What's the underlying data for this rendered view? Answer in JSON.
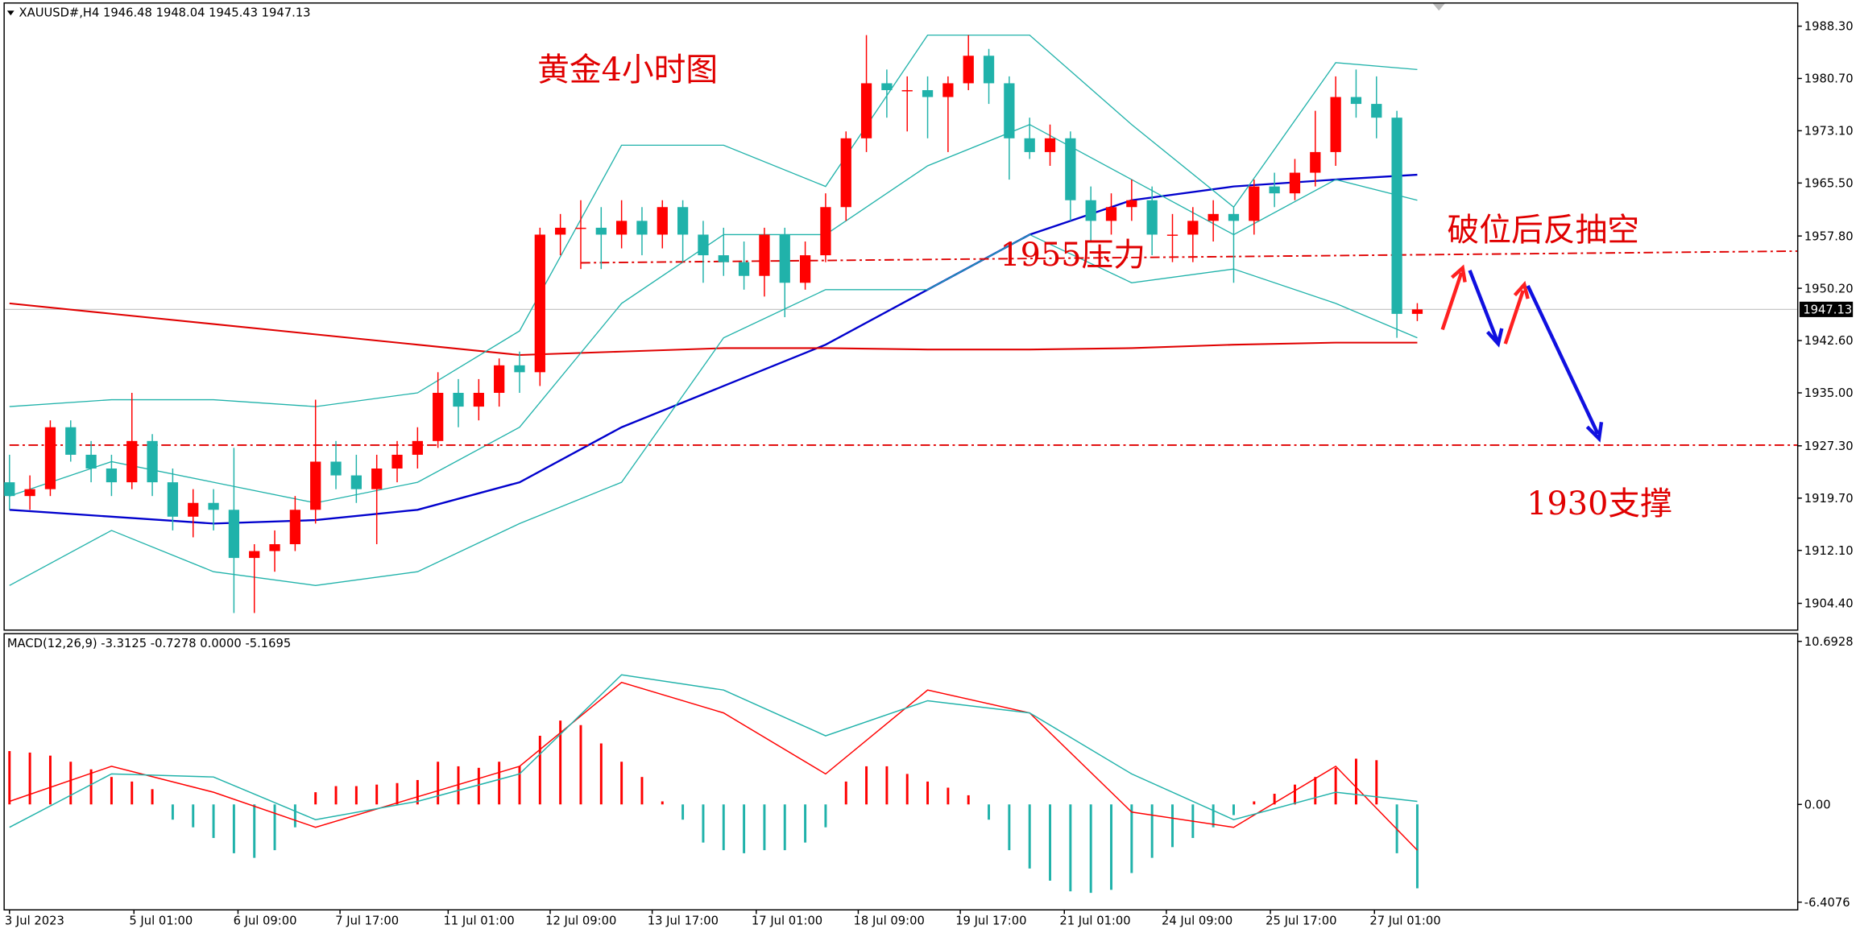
{
  "chart_data": {
    "type": "candlestick",
    "header": "XAUUSD#,H4  1946.48 1948.04 1945.43 1947.13",
    "macd_header": "MACD(12,26,9) -3.3125 -0.7278 0.0000 -5.1695",
    "annotations": [
      "黄金4小时图",
      "1955压力",
      "破位后反抽空",
      "1930支撑"
    ],
    "current_price": {
      "value": 1947.13,
      "label": "1947.13"
    },
    "up_color": "#ff0000",
    "down_color": "#20b2aa",
    "ylim": [
      1900.6,
      1992.1
    ],
    "yticks": [
      {
        "value": 1988.3,
        "label": "1988.30"
      },
      {
        "value": 1980.7,
        "label": "1980.70"
      },
      {
        "value": 1973.1,
        "label": "1973.10"
      },
      {
        "value": 1965.5,
        "label": "1965.50"
      },
      {
        "value": 1957.8,
        "label": "1957.80"
      },
      {
        "value": 1950.2,
        "label": "1950.20"
      },
      {
        "value": 1942.6,
        "label": "1942.60"
      },
      {
        "value": 1935,
        "label": "1935.00"
      },
      {
        "value": 1927.3,
        "label": "1927.30"
      },
      {
        "value": 1919.7,
        "label": "1919.70"
      },
      {
        "value": 1912.1,
        "label": "1912.10"
      },
      {
        "value": 1904.4,
        "label": "1904.40"
      }
    ],
    "xticks": [
      {
        "value": 0,
        "label": "3 Jul 2023"
      },
      {
        "value": 6.1,
        "label": "5 Jul 01:00"
      },
      {
        "value": 11.2,
        "label": "6 Jul 09:00"
      },
      {
        "value": 16.2,
        "label": "7 Jul 17:00"
      },
      {
        "value": 21.5,
        "label": "11 Jul 01:00"
      },
      {
        "value": 26.5,
        "label": "12 Jul 09:00"
      },
      {
        "value": 31.5,
        "label": "13 Jul 17:00"
      },
      {
        "value": 36.6,
        "label": "17 Jul 01:00"
      },
      {
        "value": 41.6,
        "label": "18 Jul 09:00"
      },
      {
        "value": 46.6,
        "label": "19 Jul 17:00"
      },
      {
        "value": 51.7,
        "label": "21 Jul 01:00"
      },
      {
        "value": 56.7,
        "label": "24 Jul 09:00"
      },
      {
        "value": 61.8,
        "label": "25 Jul 17:00"
      },
      {
        "value": 66.9,
        "label": "27 Jul 01:00"
      }
    ],
    "candles": [
      [
        1922,
        1926,
        1918,
        1920
      ],
      [
        1920,
        1923,
        1918,
        1921
      ],
      [
        1921,
        1931,
        1920,
        1930
      ],
      [
        1930,
        1931,
        1925,
        1926
      ],
      [
        1926,
        1928,
        1922,
        1924
      ],
      [
        1924,
        1926,
        1920,
        1922
      ],
      [
        1922,
        1935,
        1921,
        1928
      ],
      [
        1928,
        1929,
        1920,
        1922
      ],
      [
        1922,
        1924,
        1915,
        1917
      ],
      [
        1917,
        1921,
        1914,
        1919
      ],
      [
        1919,
        1921,
        1915,
        1918
      ],
      [
        1918,
        1927,
        1903,
        1911
      ],
      [
        1911,
        1913,
        1903,
        1912
      ],
      [
        1912,
        1915,
        1909,
        1913
      ],
      [
        1913,
        1920,
        1912,
        1918
      ],
      [
        1918,
        1934,
        1916,
        1925
      ],
      [
        1925,
        1928,
        1921,
        1923
      ],
      [
        1923,
        1926,
        1919,
        1921
      ],
      [
        1921,
        1926,
        1913,
        1924
      ],
      [
        1924,
        1928,
        1922,
        1926
      ],
      [
        1926,
        1930,
        1924,
        1928
      ],
      [
        1928,
        1938,
        1927,
        1935
      ],
      [
        1935,
        1937,
        1930,
        1933
      ],
      [
        1933,
        1937,
        1931,
        1935
      ],
      [
        1935,
        1940,
        1933,
        1939
      ],
      [
        1939,
        1941,
        1935,
        1938
      ],
      [
        1938,
        1959,
        1936,
        1958
      ],
      [
        1958,
        1961,
        1955,
        1959
      ],
      [
        1959,
        1963,
        1953,
        1959
      ],
      [
        1959,
        1962,
        1953,
        1958
      ],
      [
        1958,
        1963,
        1956,
        1960
      ],
      [
        1960,
        1962,
        1955,
        1958
      ],
      [
        1958,
        1963,
        1956,
        1962
      ],
      [
        1962,
        1963,
        1954,
        1958
      ],
      [
        1958,
        1960,
        1951,
        1955
      ],
      [
        1955,
        1959,
        1952,
        1954
      ],
      [
        1954,
        1957,
        1950,
        1952
      ],
      [
        1952,
        1959,
        1949,
        1958
      ],
      [
        1958,
        1959,
        1946,
        1951
      ],
      [
        1951,
        1957,
        1950,
        1955
      ],
      [
        1955,
        1964,
        1954,
        1962
      ],
      [
        1962,
        1973,
        1960,
        1972
      ],
      [
        1972,
        1987,
        1970,
        1980
      ],
      [
        1980,
        1982,
        1975,
        1979
      ],
      [
        1979,
        1981,
        1973,
        1979
      ],
      [
        1979,
        1981,
        1972,
        1978
      ],
      [
        1978,
        1981,
        1970,
        1980
      ],
      [
        1980,
        1987,
        1979,
        1984
      ],
      [
        1984,
        1985,
        1977,
        1980
      ],
      [
        1980,
        1981,
        1966,
        1972
      ],
      [
        1972,
        1975,
        1969,
        1970
      ],
      [
        1970,
        1974,
        1968,
        1972
      ],
      [
        1972,
        1973,
        1960,
        1963
      ],
      [
        1963,
        1965,
        1957,
        1960
      ],
      [
        1960,
        1964,
        1958,
        1962
      ],
      [
        1962,
        1966,
        1960,
        1963
      ],
      [
        1963,
        1965,
        1955,
        1958
      ],
      [
        1958,
        1961,
        1954,
        1958
      ],
      [
        1958,
        1962,
        1954,
        1960
      ],
      [
        1960,
        1963,
        1957,
        1961
      ],
      [
        1961,
        1962,
        1951,
        1960
      ],
      [
        1960,
        1966,
        1958,
        1965
      ],
      [
        1965,
        1967,
        1962,
        1964
      ],
      [
        1964,
        1969,
        1963,
        1967
      ],
      [
        1967,
        1976,
        1965,
        1970
      ],
      [
        1970,
        1981,
        1968,
        1978
      ],
      [
        1978,
        1982,
        1975,
        1977
      ],
      [
        1977,
        1981,
        1972,
        1975
      ],
      [
        1975,
        1976,
        1943,
        1946.48
      ],
      [
        1946.48,
        1948.04,
        1945.43,
        1947.13
      ]
    ],
    "lines": [
      {
        "color": "#0000cd",
        "width": 1.6,
        "x": [
          0,
          5,
          10,
          15,
          20,
          25,
          30,
          35,
          40,
          45,
          50,
          55,
          60,
          65,
          69
        ],
        "values": [
          1918,
          1917,
          1916,
          1916.5,
          1918,
          1922,
          1930,
          1936,
          1942,
          1950,
          1958,
          1963,
          1965,
          1966,
          1966.7
        ]
      },
      {
        "color": "#e00000",
        "width": 1.4,
        "x": [
          0,
          5,
          10,
          15,
          20,
          25,
          30,
          35,
          40,
          45,
          50,
          55,
          60,
          65,
          69
        ],
        "values": [
          1948,
          1946.5,
          1945,
          1943.5,
          1942,
          1940.5,
          1941,
          1941.5,
          1941.5,
          1941.3,
          1941.3,
          1941.5,
          1942,
          1942.3,
          1942.3
        ]
      },
      {
        "color": "#20b2aa",
        "width": 0.9,
        "x": [
          0,
          5,
          10,
          15,
          20,
          25,
          30,
          35,
          40,
          45,
          50,
          55,
          60,
          65,
          69
        ],
        "values": [
          1933,
          1934,
          1934,
          1933,
          1935,
          1944,
          1971,
          1971,
          1965,
          1987,
          1987,
          1974,
          1962,
          1983,
          1982
        ]
      },
      {
        "color": "#20b2aa",
        "width": 0.9,
        "x": [
          0,
          5,
          10,
          15,
          20,
          25,
          30,
          35,
          40,
          45,
          50,
          55,
          60,
          65,
          69
        ],
        "values": [
          1920,
          1925,
          1922,
          1919,
          1922,
          1930,
          1948,
          1958,
          1958,
          1968,
          1974,
          1966,
          1958,
          1966,
          1963
        ]
      },
      {
        "color": "#20b2aa",
        "width": 0.9,
        "x": [
          0,
          5,
          10,
          15,
          20,
          25,
          30,
          35,
          40,
          45,
          50,
          55,
          60,
          65,
          69
        ],
        "values": [
          1907,
          1915,
          1909,
          1907,
          1909,
          1916,
          1922,
          1943,
          1950,
          1950,
          1958,
          1951,
          1953,
          1948,
          1943
        ]
      }
    ],
    "levels": [
      {
        "color": "#e00000",
        "from": 28,
        "values": [
          1953.9,
          1955.6
        ]
      },
      {
        "color": "#e00000",
        "from": 0,
        "values": [
          1927.4,
          1927.4
        ]
      }
    ],
    "macd": {
      "ylim": [
        -6.874,
        11.315
      ],
      "yticks": [
        10.6928,
        {
          "value": 0,
          "label": "0.00"
        },
        -6.4076
      ],
      "histogram": [
        3.5,
        3.4,
        3.2,
        2.8,
        2.3,
        1.8,
        1.5,
        1.0,
        -1.0,
        -1.5,
        -2.2,
        -3.2,
        -3.5,
        -3.0,
        -1.5,
        0.8,
        1.2,
        1.2,
        1.3,
        1.4,
        1.6,
        2.8,
        2.5,
        2.4,
        2.8,
        2.5,
        4.5,
        5.5,
        5.2,
        4.0,
        2.8,
        1.8,
        0.2,
        -1.0,
        -2.5,
        -3.0,
        -3.2,
        -3.0,
        -3.0,
        -2.5,
        -1.5,
        1.5,
        2.5,
        2.5,
        2.0,
        1.5,
        1.1,
        0.6,
        -1.0,
        -3.0,
        -4.2,
        -5.0,
        -5.7,
        -5.8,
        -5.6,
        -4.5,
        -3.5,
        -2.8,
        -2.2,
        -1.5,
        -0.7,
        0.2,
        0.7,
        1.3,
        1.8,
        2.4,
        3.0,
        2.9,
        -3.2,
        -5.5
      ],
      "lines": [
        {
          "color": "#ff0000",
          "x": [
            0,
            5,
            10,
            15,
            20,
            25,
            30,
            35,
            40,
            45,
            50,
            55,
            60,
            65,
            69
          ],
          "values": [
            0.2,
            2.5,
            0.8,
            -1.5,
            0.5,
            2.5,
            8.0,
            6.0,
            2.0,
            7.5,
            6.0,
            -0.5,
            -1.5,
            2.5,
            -3.0
          ]
        },
        {
          "color": "#20b2aa",
          "x": [
            0,
            5,
            10,
            15,
            20,
            25,
            30,
            35,
            40,
            45,
            50,
            55,
            60,
            65,
            69
          ],
          "values": [
            -1.5,
            2.0,
            1.8,
            -1.0,
            0.2,
            2.0,
            8.5,
            7.5,
            4.5,
            6.8,
            6.0,
            2.0,
            -1.0,
            0.8,
            0.2
          ]
        }
      ]
    }
  }
}
